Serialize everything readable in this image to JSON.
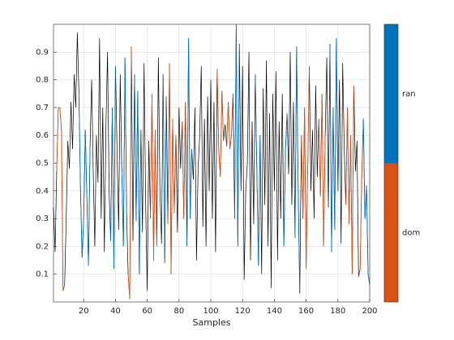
{
  "chart_data": {
    "type": "line",
    "xlabel": "Samples",
    "color": "#000000",
    "values": [
      0.34,
      0.18,
      0.47,
      0.7,
      0.7,
      0.62,
      0.04,
      0.06,
      0.3,
      0.58,
      0.48,
      0.72,
      0.55,
      0.82,
      0.7,
      0.97,
      0.75,
      0.4,
      0.16,
      0.3,
      0.62,
      0.38,
      0.13,
      0.56,
      0.8,
      0.47,
      0.2,
      0.6,
      0.43,
      0.95,
      0.3,
      0.7,
      0.18,
      0.63,
      0.9,
      0.4,
      0.22,
      0.7,
      0.12,
      0.85,
      0.55,
      0.26,
      0.82,
      0.47,
      0.2,
      0.88,
      0.32,
      0.1,
      0.01,
      0.92,
      0.22,
      0.82,
      0.29,
      0.76,
      0.1,
      0.62,
      0.25,
      0.86,
      0.35,
      0.04,
      0.58,
      0.3,
      0.75,
      0.15,
      0.62,
      0.2,
      0.88,
      0.4,
      0.21,
      0.82,
      0.14,
      0.74,
      0.28,
      0.86,
      0.1,
      0.66,
      0.32,
      0.6,
      0.25,
      0.7,
      0.48,
      0.65,
      0.3,
      0.72,
      0.2,
      0.95,
      0.3,
      0.55,
      0.44,
      0.7,
      0.15,
      0.48,
      0.6,
      0.85,
      0.27,
      0.66,
      0.2,
      0.74,
      0.4,
      0.8,
      0.3,
      0.72,
      0.18,
      0.84,
      0.55,
      0.45,
      0.76,
      0.58,
      0.64,
      0.56,
      0.72,
      0.55,
      0.6,
      0.75,
      0.3,
      1,
      0.2,
      0.93,
      0.4,
      0.85,
      0.08,
      0.4,
      0.5,
      0.9,
      0.15,
      0.65,
      0.28,
      0.82,
      0.47,
      0.13,
      0.6,
      0.1,
      0.77,
      0.35,
      0.87,
      0.2,
      0.68,
      0.05,
      0.75,
      0.4,
      0.83,
      0.15,
      0.65,
      0.3,
      0.75,
      0.2,
      0.55,
      0.68,
      0.46,
      0.9,
      0.35,
      0.72,
      0.23,
      0.92,
      0.4,
      0.03,
      0.6,
      0.3,
      0.7,
      0.12,
      0.48,
      0.85,
      0.4,
      0.62,
      0.3,
      0.78,
      0.45,
      0.66,
      0.38,
      0.75,
      0.2,
      0.6,
      0.88,
      0.34,
      0.93,
      0.18,
      0.7,
      0.26,
      0.95,
      0.4,
      0.8,
      0.21,
      0.86,
      0.55,
      0.35,
      0.7,
      0.28,
      0.6,
      0.1,
      0.78,
      0.47,
      0.58,
      0.09,
      0.12,
      0.45,
      0.66,
      0.3,
      0.42,
      0.1,
      0.06
    ],
    "series": [
      {
        "name": "dom",
        "color": "#d95319",
        "spans": [
          [
            3,
            8
          ],
          [
            48,
            50
          ],
          [
            62,
            66
          ],
          [
            73,
            78
          ],
          [
            82,
            84
          ],
          [
            104,
            108
          ],
          [
            110,
            114
          ],
          [
            157,
            162
          ],
          [
            168,
            172
          ],
          [
            185,
            190
          ],
          [
            193,
            196
          ]
        ]
      },
      {
        "name": "ran",
        "color": "#0072bd",
        "spans": [
          [
            17,
            24
          ],
          [
            37,
            40
          ],
          [
            44,
            47
          ],
          [
            52,
            56
          ],
          [
            70,
            72
          ],
          [
            85,
            88
          ],
          [
            115,
            118
          ],
          [
            128,
            131
          ],
          [
            146,
            148
          ],
          [
            153,
            156
          ],
          [
            175,
            180
          ],
          [
            196,
            200
          ]
        ]
      }
    ],
    "xlim": [
      1,
      200
    ],
    "xticks": [
      20,
      40,
      60,
      80,
      100,
      120,
      140,
      160,
      180,
      200
    ],
    "ylim": [
      0,
      1
    ],
    "yticks": [
      0.1,
      0.2,
      0.3,
      0.4,
      0.5,
      0.6,
      0.7,
      0.8,
      0.9
    ],
    "grid": true
  }
}
